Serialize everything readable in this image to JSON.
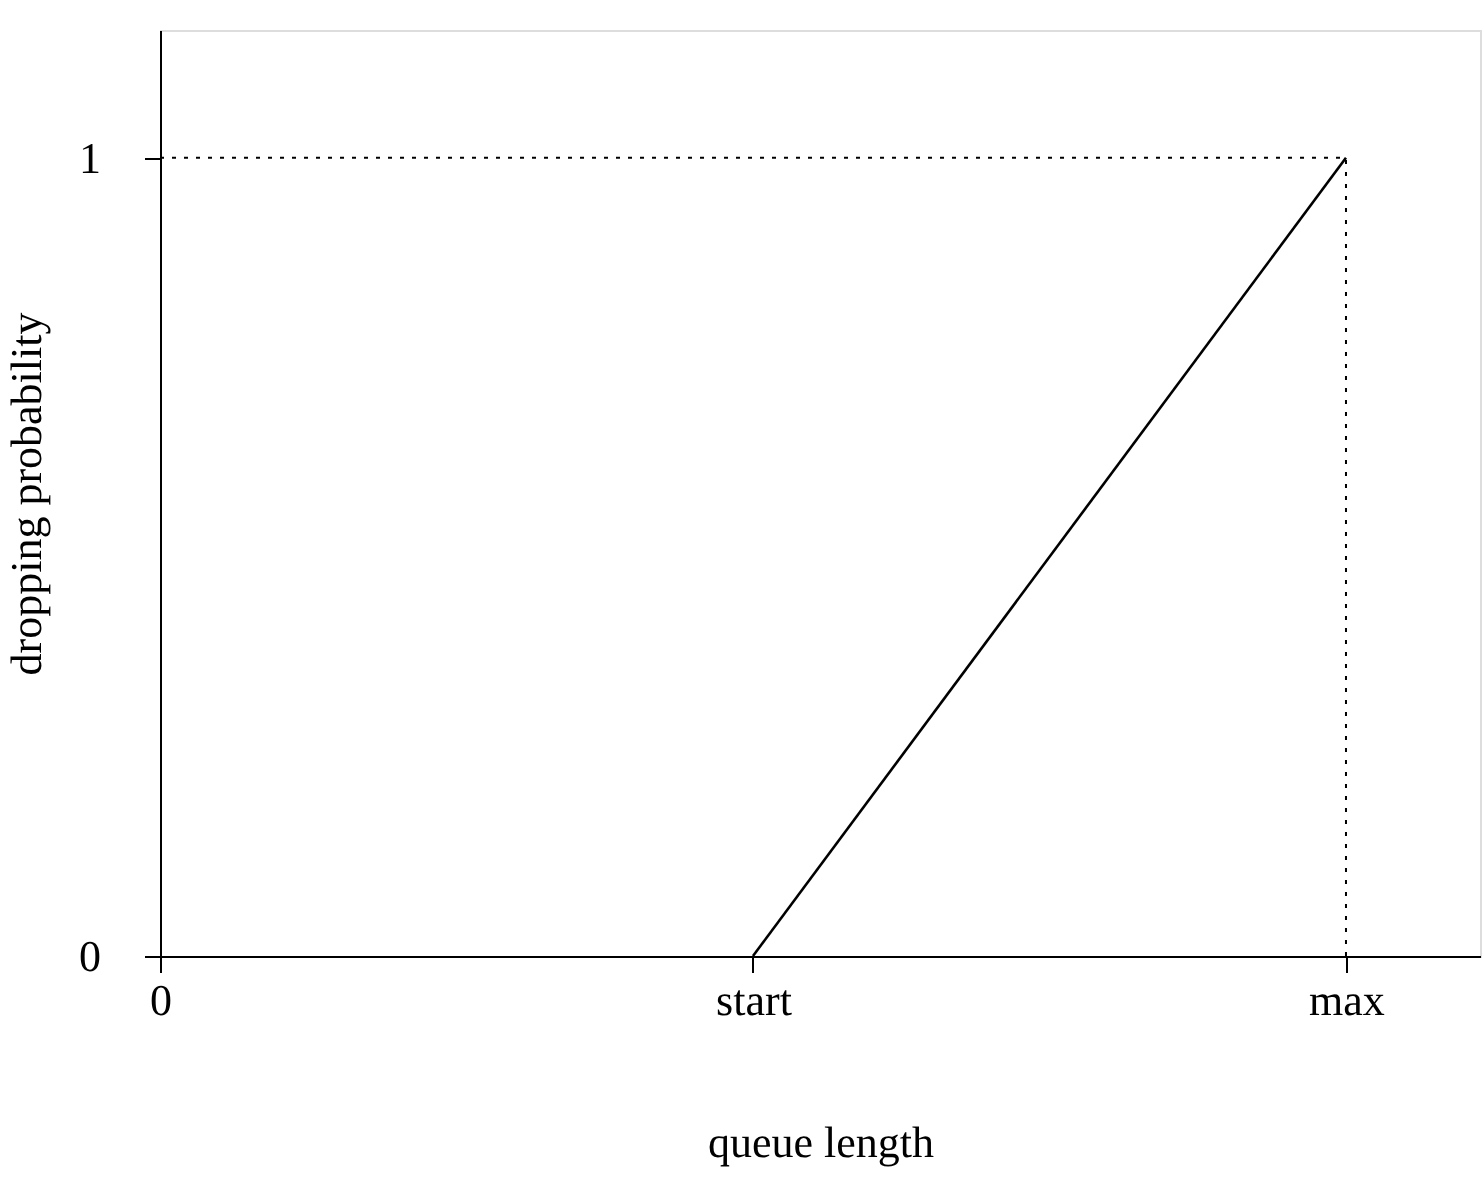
{
  "chart_data": {
    "type": "line",
    "xlabel": "queue length",
    "ylabel": "dropping probability",
    "categories": [
      "0",
      "start",
      "max"
    ],
    "values": [
      null,
      0,
      1
    ],
    "color": "#000000",
    "ylim": [
      0,
      1.16
    ],
    "yticks": [
      0,
      1
    ],
    "ref_lines": [
      {
        "axis": "y",
        "value": 1,
        "line_style": "dotted"
      },
      {
        "axis": "x",
        "value": "max",
        "line_style": "dotted"
      }
    ],
    "grid": false,
    "marker": "none",
    "line_style": "solid"
  }
}
